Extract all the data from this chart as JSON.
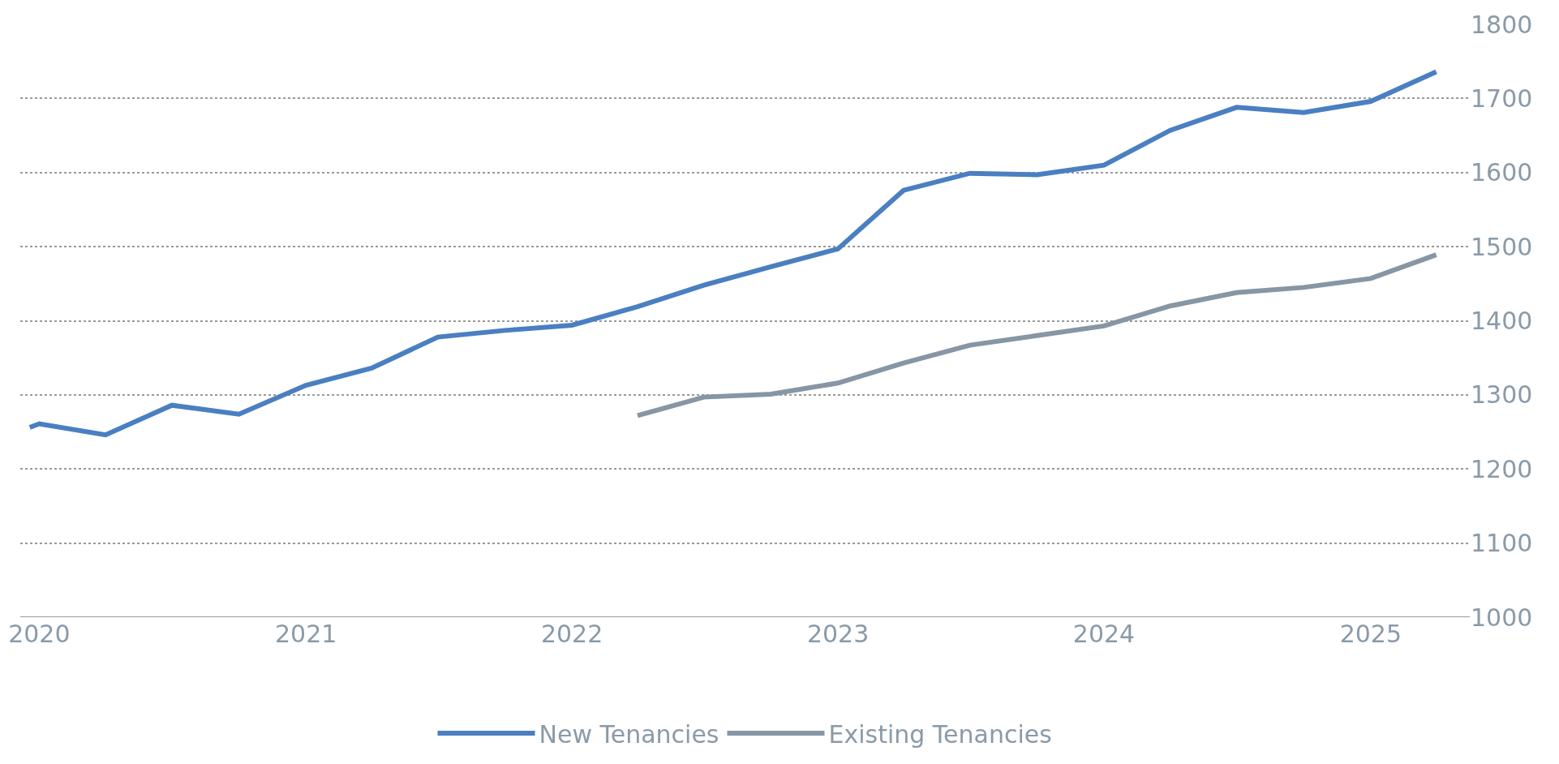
{
  "chart_data": {
    "type": "line",
    "x": [
      "2019-12-19",
      "2020-01-01",
      "2020-04-01",
      "2020-07-01",
      "2020-10-01",
      "2021-01-01",
      "2021-04-01",
      "2021-07-01",
      "2021-10-01",
      "2022-01-01",
      "2022-04-01",
      "2022-07-01",
      "2022-10-01",
      "2023-01-01",
      "2023-04-01",
      "2023-07-01",
      "2023-10-01",
      "2024-01-01",
      "2024-04-01",
      "2024-07-01",
      "2024-10-01",
      "2025-01-01",
      "2025-04-01"
    ],
    "series": [
      {
        "name": "New Tenancies",
        "color": "#4a7fc1",
        "values": [
          1256,
          1261,
          1246,
          1286,
          1274,
          1313,
          1336,
          1378,
          1387,
          1394,
          1419,
          1448,
          1473,
          1497,
          1576,
          1599,
          1597,
          1610,
          1657,
          1688,
          1681,
          1696,
          1736
        ]
      },
      {
        "name": "Existing Tenancies",
        "color": "#8796a5",
        "values": [
          null,
          null,
          null,
          null,
          null,
          null,
          null,
          null,
          null,
          null,
          1272,
          1297,
          1301,
          1316,
          1343,
          1367,
          1380,
          1393,
          1420,
          1438,
          1445,
          1457,
          1489
        ]
      }
    ],
    "xlim": [
      "2019-12-06",
      "2025-05-17"
    ],
    "xticks": [
      {
        "value": "2020-01-01",
        "label": "2020"
      },
      {
        "value": "2021-01-01",
        "label": "2021"
      },
      {
        "value": "2022-01-01",
        "label": "2022"
      },
      {
        "value": "2023-01-01",
        "label": "2023"
      },
      {
        "value": "2024-01-01",
        "label": "2024"
      },
      {
        "value": "2025-01-01",
        "label": "2025"
      }
    ],
    "ylim": [
      1000,
      1800
    ],
    "yticks": [
      1000,
      1100,
      1200,
      1300,
      1400,
      1500,
      1600,
      1700,
      1800
    ],
    "grid": "y",
    "legend": "bottom",
    "marker": "none",
    "line_style": "solid"
  }
}
